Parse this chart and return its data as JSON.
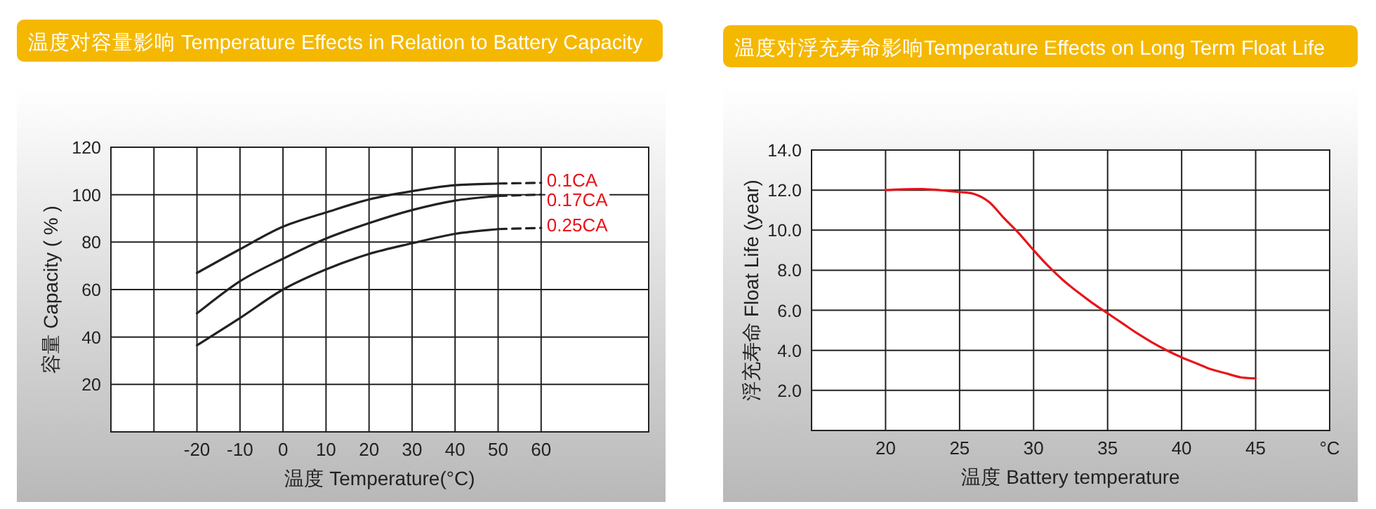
{
  "chart_data": [
    {
      "type": "line",
      "title": "温度对容量影响 Temperature Effects in Relation to Battery Capacity",
      "xlabel": "温度  Temperature(°C)",
      "ylabel": "容量 Capacity ( % )",
      "xlim": [
        -40,
        85
      ],
      "ylim": [
        0,
        120
      ],
      "xticks": [
        {
          "value": -30,
          "label": null
        },
        -20,
        -10,
        0,
        10,
        20,
        30,
        40,
        50,
        60
      ],
      "yticks": [
        20,
        40,
        60,
        80,
        100,
        120
      ],
      "grid": true,
      "series": [
        {
          "color": "#222222",
          "x": [
            -20,
            -10,
            0,
            10,
            20,
            30,
            40,
            50
          ],
          "values": [
            67,
            77,
            86.5,
            92.5,
            98,
            101.5,
            104,
            104.7
          ]
        },
        {
          "color": "#222222",
          "x": [
            -20,
            -10,
            0,
            10,
            20,
            30,
            40,
            50
          ],
          "values": [
            50,
            63.5,
            73,
            81.5,
            88,
            93.5,
            97.5,
            99.5
          ]
        },
        {
          "color": "#222222",
          "x": [
            -20,
            -10,
            0,
            10,
            20,
            30,
            40,
            50
          ],
          "values": [
            36.5,
            48,
            60,
            68.5,
            75,
            79.5,
            83.5,
            85.5
          ]
        },
        {
          "name": "0.1CA",
          "color": "#222222",
          "line_style": "dashed",
          "x": [
            50,
            60
          ],
          "values": [
            104.7,
            105
          ]
        },
        {
          "name": "0.17CA",
          "color": "#222222",
          "line_style": "dashed",
          "x": [
            50,
            60
          ],
          "values": [
            99.5,
            100
          ]
        },
        {
          "name": "0.25CA",
          "color": "#222222",
          "line_style": "dashed",
          "x": [
            50,
            60
          ],
          "values": [
            85.5,
            86
          ]
        }
      ]
    },
    {
      "type": "line",
      "title": "温度对浮充寿命影响Temperature Effects on Long Term Float Life",
      "xlabel": "温度  Battery temperature",
      "ylabel": "浮充寿命  Float Life (year)",
      "xlim": [
        15,
        50
      ],
      "ylim": [
        0,
        14
      ],
      "xticks": [
        20,
        25,
        30,
        35,
        40,
        45,
        {
          "value": 50,
          "label": "°C"
        }
      ],
      "yticks": [
        {
          "value": 2,
          "label": "2.0"
        },
        {
          "value": 4,
          "label": "4.0"
        },
        {
          "value": 6,
          "label": "6.0"
        },
        {
          "value": 8,
          "label": "8.0"
        },
        {
          "value": 10,
          "label": "10.0"
        },
        {
          "value": 12,
          "label": "12.0"
        },
        {
          "value": 14,
          "label": "14.0"
        }
      ],
      "grid": true,
      "series": [
        {
          "color": "#e8141b",
          "x": [
            20,
            22.5,
            25,
            26,
            27,
            28,
            29,
            30,
            31,
            32,
            33,
            34,
            35,
            36,
            37,
            38,
            39,
            40,
            41,
            42,
            43,
            44,
            45
          ],
          "values": [
            12.0,
            12.05,
            11.9,
            11.8,
            11.4,
            10.6,
            9.85,
            9.0,
            8.2,
            7.5,
            6.9,
            6.35,
            5.85,
            5.35,
            4.85,
            4.4,
            4.0,
            3.65,
            3.35,
            3.05,
            2.85,
            2.65,
            2.6
          ]
        }
      ]
    }
  ]
}
